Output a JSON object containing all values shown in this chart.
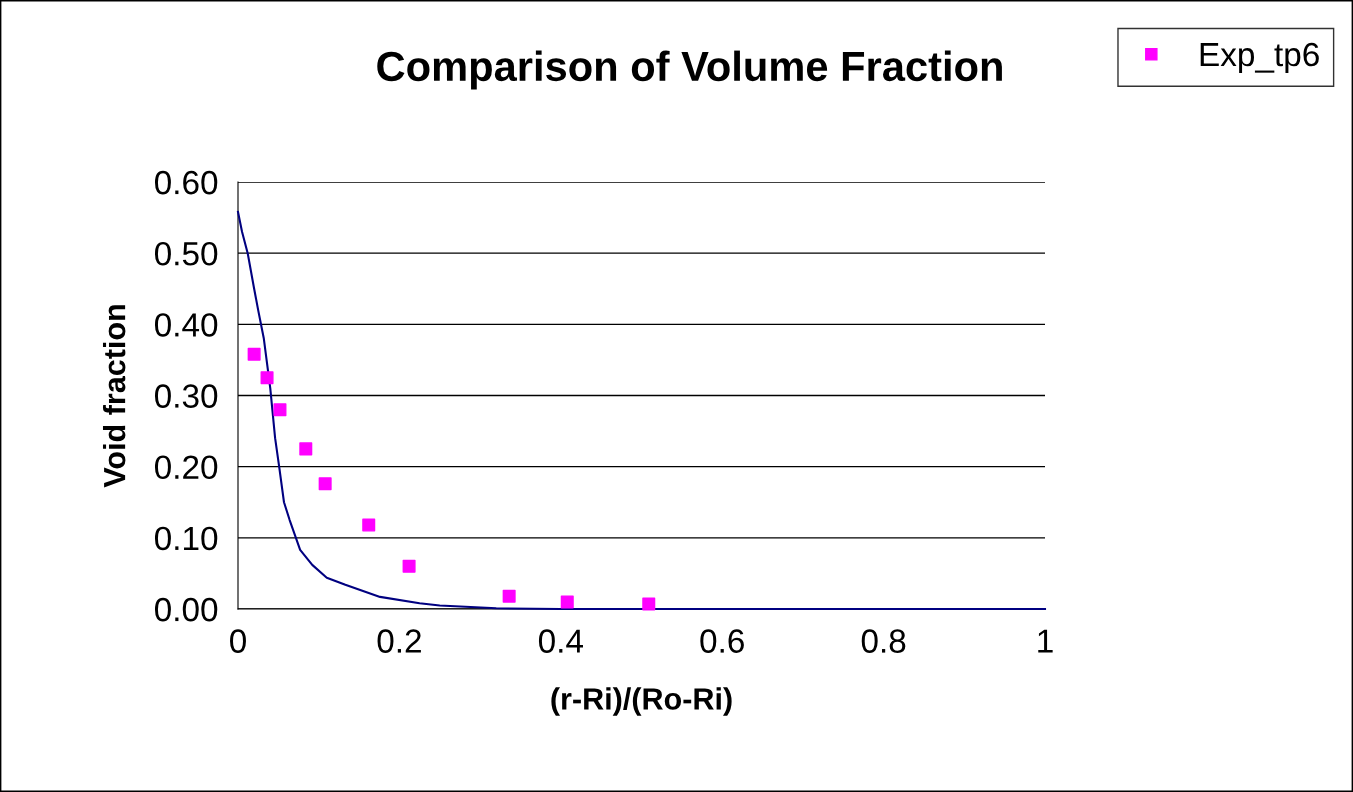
{
  "chart_data": {
    "type": "scatter",
    "title": "Comparison of Volume Fraction",
    "xlabel": "(r-Ri)/(Ro-Ri)",
    "ylabel": "Void fraction",
    "series": [
      {
        "type": "line",
        "color": "#000080",
        "marker": "none",
        "x": [
          0,
          0.005,
          0.012,
          0.02,
          0.025,
          0.032,
          0.04,
          0.046,
          0.051,
          0.057,
          0.064,
          0.077,
          0.092,
          0.11,
          0.133,
          0.176,
          0.225,
          0.25,
          0.32,
          0.4,
          0.6,
          0.8,
          1
        ],
        "values": [
          0.558,
          0.53,
          0.5,
          0.45,
          0.42,
          0.38,
          0.31,
          0.24,
          0.2,
          0.15,
          0.125,
          0.083,
          0.062,
          0.044,
          0.034,
          0.017,
          0.008,
          0.005,
          0.001,
          0,
          0,
          0,
          0
        ]
      },
      {
        "name": "Exp_tp6",
        "color": "#ff00ff",
        "marker": "square",
        "x": [
          0.02,
          0.036,
          0.052,
          0.084,
          0.108,
          0.162,
          0.212,
          0.336,
          0.408,
          0.509
        ],
        "values": [
          0.358,
          0.325,
          0.28,
          0.225,
          0.176,
          0.118,
          0.06,
          0.018,
          0.01,
          0.007
        ]
      }
    ],
    "xlim": [
      0,
      1
    ],
    "xticks": [
      0,
      0.2,
      0.4,
      0.6,
      0.8,
      1
    ],
    "ylim": [
      0,
      0.6
    ],
    "yticks": [
      {
        "value": 0,
        "label": "0.00"
      },
      {
        "value": 0.1,
        "label": "0.10"
      },
      {
        "value": 0.2,
        "label": "0.20"
      },
      {
        "value": 0.3,
        "label": "0.30"
      },
      {
        "value": 0.4,
        "label": "0.40"
      },
      {
        "value": 0.5,
        "label": "0.50"
      },
      {
        "value": 0.6,
        "label": "0.60"
      }
    ],
    "grid": "y",
    "legend": "top right"
  }
}
